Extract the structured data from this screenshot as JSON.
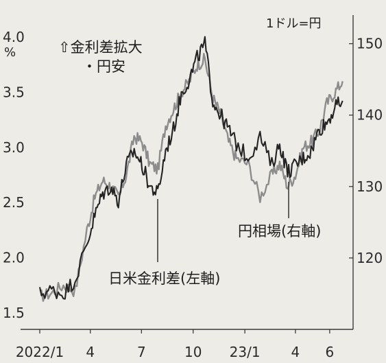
{
  "chart_data": {
    "type": "line",
    "title": "",
    "x_tick_labels": [
      "2022/1",
      "4",
      "7",
      "10",
      "23/1",
      "4",
      "6"
    ],
    "x_tick_dates": [
      "2022-01",
      "2022-04",
      "2022-07",
      "2022-10",
      "2023-01",
      "2023-04",
      "2023-06"
    ],
    "y_left": {
      "ticks": [
        "1.5",
        "2.0",
        "2.5",
        "3.0",
        "3.5",
        "4.0"
      ],
      "range": [
        1.35,
        4.2
      ],
      "unit": "%"
    },
    "y_right": {
      "ticks": [
        "120",
        "130",
        "140",
        "150"
      ],
      "range": [
        110,
        154
      ],
      "unit": "1ドル=円"
    },
    "series": [
      {
        "name": "日米金利差(左軸)",
        "axis": "left",
        "color": "#8c8c8c",
        "dates": [
          "2022-01-03",
          "2022-01-24",
          "2022-02-14",
          "2022-03-07",
          "2022-03-28",
          "2022-04-11",
          "2022-04-25",
          "2022-05-09",
          "2022-05-23",
          "2022-06-06",
          "2022-06-20",
          "2022-07-04",
          "2022-07-18",
          "2022-08-01",
          "2022-08-15",
          "2022-08-29",
          "2022-09-12",
          "2022-09-26",
          "2022-10-10",
          "2022-10-24",
          "2022-11-07",
          "2022-11-21",
          "2022-12-05",
          "2022-12-19",
          "2023-01-09",
          "2023-01-30",
          "2023-02-20",
          "2023-03-06",
          "2023-03-20",
          "2023-04-03",
          "2023-04-17",
          "2023-05-01",
          "2023-05-15",
          "2023-05-29",
          "2023-06-12",
          "2023-06-26"
        ],
        "values": [
          1.65,
          1.68,
          1.75,
          1.7,
          2.25,
          2.55,
          2.7,
          2.65,
          2.55,
          2.75,
          3.1,
          3.05,
          2.85,
          2.8,
          3.2,
          3.35,
          3.5,
          3.6,
          3.75,
          3.8,
          3.45,
          3.3,
          3.05,
          2.9,
          2.85,
          2.55,
          2.75,
          2.85,
          2.65,
          2.75,
          3.0,
          3.05,
          3.15,
          3.4,
          3.5,
          3.6
        ]
      },
      {
        "name": "円相場(右軸)",
        "axis": "right",
        "color": "#242424",
        "dates": [
          "2022-01-03",
          "2022-01-24",
          "2022-02-14",
          "2022-03-07",
          "2022-03-28",
          "2022-04-11",
          "2022-04-25",
          "2022-05-09",
          "2022-05-23",
          "2022-06-06",
          "2022-06-20",
          "2022-07-04",
          "2022-07-18",
          "2022-08-01",
          "2022-08-15",
          "2022-08-29",
          "2022-09-12",
          "2022-09-26",
          "2022-10-10",
          "2022-10-24",
          "2022-11-07",
          "2022-11-21",
          "2022-12-05",
          "2022-12-19",
          "2023-01-09",
          "2023-01-30",
          "2023-02-20",
          "2023-03-06",
          "2023-03-20",
          "2023-04-03",
          "2023-04-17",
          "2023-05-01",
          "2023-05-15",
          "2023-05-29",
          "2023-06-12",
          "2023-06-26"
        ],
        "values": [
          115,
          115.5,
          115,
          117,
          122,
          126,
          129,
          130,
          128,
          133,
          135,
          133,
          130,
          129,
          135,
          138,
          143,
          145,
          148,
          150,
          142,
          140,
          138,
          136,
          134,
          137,
          133,
          136,
          132,
          133,
          134,
          135,
          138,
          139,
          141,
          142
        ]
      }
    ],
    "annotations": [
      {
        "text": "⇧金利差拡大",
        "note": ""
      },
      {
        "text": "・円安",
        "note": ""
      }
    ],
    "grid": false,
    "legend": "none"
  }
}
